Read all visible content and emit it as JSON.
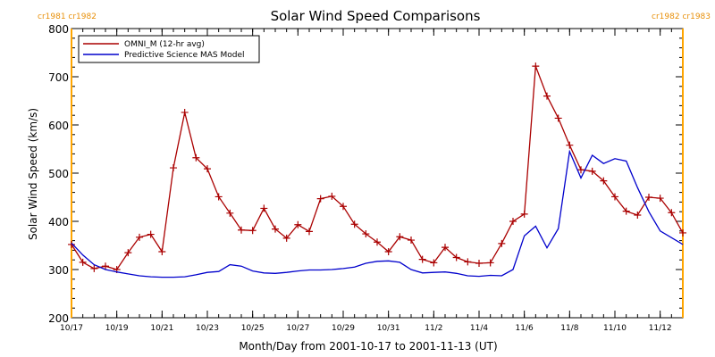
{
  "chart_data": {
    "type": "line",
    "title": "Solar Wind Speed Comparisons",
    "xlabel": "Month/Day from 2001-10-17 to 2001-11-13 (UT)",
    "ylabel": "Solar Wind Speed (km/s)",
    "xlim": [
      "2001-10-17",
      "2001-11-13"
    ],
    "ylim": [
      200,
      800
    ],
    "x_ticks": [
      {
        "date": "2001-10-17",
        "label": "10/17"
      },
      {
        "date": "2001-10-19",
        "label": "10/19"
      },
      {
        "date": "2001-10-21",
        "label": "10/21"
      },
      {
        "date": "2001-10-23",
        "label": "10/23"
      },
      {
        "date": "2001-10-25",
        "label": "10/25"
      },
      {
        "date": "2001-10-27",
        "label": "10/27"
      },
      {
        "date": "2001-10-29",
        "label": "10/29"
      },
      {
        "date": "2001-10-31",
        "label": "10/31"
      },
      {
        "date": "2001-11-02",
        "label": "11/2"
      },
      {
        "date": "2001-11-04",
        "label": "11/4"
      },
      {
        "date": "2001-11-06",
        "label": "11/6"
      },
      {
        "date": "2001-11-08",
        "label": "11/8"
      },
      {
        "date": "2001-11-10",
        "label": "11/10"
      },
      {
        "date": "2001-11-12",
        "label": "11/12"
      }
    ],
    "y_ticks": [
      200,
      300,
      400,
      500,
      600,
      700,
      800
    ],
    "carrington_markers": [
      {
        "date": "2001-10-17",
        "labels": [
          "cr1981",
          "cr1982"
        ],
        "color": "#ffa500"
      },
      {
        "date": "2001-11-13",
        "labels": [
          "cr1982",
          "cr1983"
        ],
        "color": "#ffa500"
      }
    ],
    "legend_position": "top-left",
    "series": [
      {
        "name": "OMNI_M (12-hr avg)",
        "color": "#aa0000",
        "markers": "plus",
        "points": [
          [
            "2001-10-17 00:00",
            352
          ],
          [
            "2001-10-17 12:00",
            315
          ],
          [
            "2001-10-18 00:00",
            302
          ],
          [
            "2001-10-18 12:00",
            307
          ],
          [
            "2001-10-19 00:00",
            300
          ],
          [
            "2001-10-19 12:00",
            335
          ],
          [
            "2001-10-20 00:00",
            367
          ],
          [
            "2001-10-20 12:00",
            373
          ],
          [
            "2001-10-21 00:00",
            337
          ],
          [
            "2001-10-21 12:00",
            511
          ],
          [
            "2001-10-22 00:00",
            626
          ],
          [
            "2001-10-22 12:00",
            532
          ],
          [
            "2001-10-23 00:00",
            509
          ],
          [
            "2001-10-23 12:00",
            451
          ],
          [
            "2001-10-24 00:00",
            417
          ],
          [
            "2001-10-24 12:00",
            382
          ],
          [
            "2001-10-25 00:00",
            381
          ],
          [
            "2001-10-25 12:00",
            427
          ],
          [
            "2001-10-26 00:00",
            384
          ],
          [
            "2001-10-26 12:00",
            365
          ],
          [
            "2001-10-27 00:00",
            393
          ],
          [
            "2001-10-27 12:00",
            379
          ],
          [
            "2001-10-28 00:00",
            447
          ],
          [
            "2001-10-28 12:00",
            452
          ],
          [
            "2001-10-29 00:00",
            431
          ],
          [
            "2001-10-29 12:00",
            394
          ],
          [
            "2001-10-30 00:00",
            374
          ],
          [
            "2001-10-30 12:00",
            357
          ],
          [
            "2001-10-31 00:00",
            337
          ],
          [
            "2001-10-31 12:00",
            368
          ],
          [
            "2001-11-01 00:00",
            361
          ],
          [
            "2001-11-01 12:00",
            321
          ],
          [
            "2001-11-02 00:00",
            314
          ],
          [
            "2001-11-02 12:00",
            346
          ],
          [
            "2001-11-03 00:00",
            325
          ],
          [
            "2001-11-03 12:00",
            316
          ],
          [
            "2001-11-04 00:00",
            313
          ],
          [
            "2001-11-04 12:00",
            314
          ],
          [
            "2001-11-05 00:00",
            354
          ],
          [
            "2001-11-05 12:00",
            400
          ],
          [
            "2001-11-06 00:00",
            415
          ],
          [
            "2001-11-06 12:00",
            722
          ],
          [
            "2001-11-07 00:00",
            660
          ],
          [
            "2001-11-07 12:00",
            614
          ],
          [
            "2001-11-08 00:00",
            558
          ],
          [
            "2001-11-08 12:00",
            507
          ],
          [
            "2001-11-09 00:00",
            504
          ],
          [
            "2001-11-09 12:00",
            484
          ],
          [
            "2001-11-10 00:00",
            451
          ],
          [
            "2001-11-10 12:00",
            421
          ],
          [
            "2001-11-11 00:00",
            413
          ],
          [
            "2001-11-11 12:00",
            450
          ],
          [
            "2001-11-12 00:00",
            448
          ],
          [
            "2001-11-12 12:00",
            418
          ],
          [
            "2001-11-13 00:00",
            376
          ]
        ]
      },
      {
        "name": "Predictive Science MAS Model",
        "color": "#0000cc",
        "markers": "none",
        "points": [
          [
            "2001-10-17 00:00",
            355
          ],
          [
            "2001-10-17 12:00",
            330
          ],
          [
            "2001-10-18 00:00",
            310
          ],
          [
            "2001-10-18 12:00",
            300
          ],
          [
            "2001-10-19 00:00",
            295
          ],
          [
            "2001-10-19 12:00",
            291
          ],
          [
            "2001-10-20 00:00",
            287
          ],
          [
            "2001-10-20 12:00",
            285
          ],
          [
            "2001-10-21 00:00",
            284
          ],
          [
            "2001-10-21 12:00",
            284
          ],
          [
            "2001-10-22 00:00",
            285
          ],
          [
            "2001-10-22 12:00",
            289
          ],
          [
            "2001-10-23 00:00",
            294
          ],
          [
            "2001-10-23 12:00",
            296
          ],
          [
            "2001-10-24 00:00",
            310
          ],
          [
            "2001-10-24 12:00",
            307
          ],
          [
            "2001-10-25 00:00",
            297
          ],
          [
            "2001-10-25 12:00",
            293
          ],
          [
            "2001-10-26 00:00",
            292
          ],
          [
            "2001-10-26 12:00",
            294
          ],
          [
            "2001-10-27 00:00",
            297
          ],
          [
            "2001-10-27 12:00",
            299
          ],
          [
            "2001-10-28 00:00",
            299
          ],
          [
            "2001-10-28 12:00",
            300
          ],
          [
            "2001-10-29 00:00",
            302
          ],
          [
            "2001-10-29 12:00",
            305
          ],
          [
            "2001-10-30 00:00",
            313
          ],
          [
            "2001-10-30 12:00",
            317
          ],
          [
            "2001-10-31 00:00",
            318
          ],
          [
            "2001-10-31 12:00",
            315
          ],
          [
            "2001-11-01 00:00",
            300
          ],
          [
            "2001-11-01 12:00",
            293
          ],
          [
            "2001-11-02 00:00",
            294
          ],
          [
            "2001-11-02 12:00",
            295
          ],
          [
            "2001-11-03 00:00",
            292
          ],
          [
            "2001-11-03 12:00",
            287
          ],
          [
            "2001-11-04 00:00",
            286
          ],
          [
            "2001-11-04 12:00",
            288
          ],
          [
            "2001-11-05 00:00",
            287
          ],
          [
            "2001-11-05 12:00",
            300
          ],
          [
            "2001-11-06 00:00",
            370
          ],
          [
            "2001-11-06 12:00",
            390
          ],
          [
            "2001-11-07 00:00",
            345
          ],
          [
            "2001-11-07 12:00",
            385
          ],
          [
            "2001-11-08 00:00",
            545
          ],
          [
            "2001-11-08 12:00",
            490
          ],
          [
            "2001-11-09 00:00",
            537
          ],
          [
            "2001-11-09 12:00",
            520
          ],
          [
            "2001-11-10 00:00",
            530
          ],
          [
            "2001-11-10 12:00",
            525
          ],
          [
            "2001-11-11 00:00",
            470
          ],
          [
            "2001-11-11 12:00",
            420
          ],
          [
            "2001-11-12 00:00",
            380
          ],
          [
            "2001-11-13 00:00",
            352
          ]
        ]
      }
    ]
  }
}
